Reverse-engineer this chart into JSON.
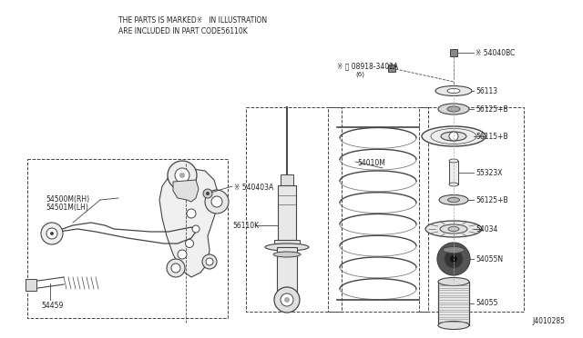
{
  "bg_color": "#ffffff",
  "header_line1": "THE PARTS IS MARKED※   IN ILLUSTRATION",
  "header_line2": "ARE INCLUDED IN PART CODE56110K",
  "diagram_id": "J4010285",
  "line_color": "#444444",
  "text_color": "#222222",
  "font_size": 5.5,
  "label_font_size": 5.5
}
